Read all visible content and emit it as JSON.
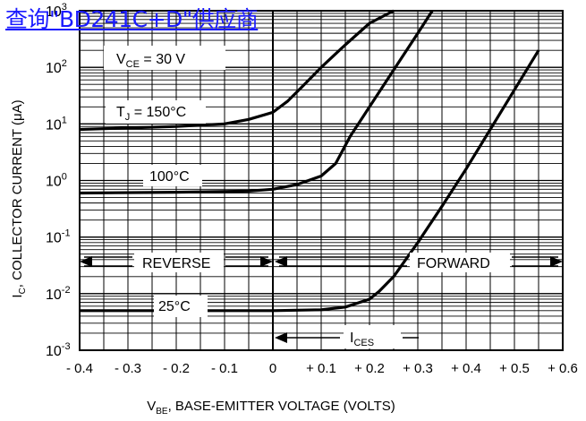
{
  "watermark": {
    "text": "查询\"BD241C+D\"供应商"
  },
  "chart_data": {
    "type": "line",
    "title": "",
    "xlabel": {
      "main": "V",
      "sub": "BE",
      "rest": ", BASE-EMITTER VOLTAGE (VOLTS)"
    },
    "ylabel": {
      "main": "I",
      "sub": "C",
      "rest": ", COLLECTOR CURRENT (μA)"
    },
    "xlim": [
      -0.4,
      0.6
    ],
    "ylim": [
      0.001,
      1000
    ],
    "yscale": "log",
    "grid": true,
    "x_ticks": [
      {
        "v": -0.4,
        "label": "- 0.4"
      },
      {
        "v": -0.3,
        "label": "- 0.3"
      },
      {
        "v": -0.2,
        "label": "- 0.2"
      },
      {
        "v": -0.1,
        "label": "- 0.1"
      },
      {
        "v": 0,
        "label": "0"
      },
      {
        "v": 0.1,
        "label": "+ 0.1"
      },
      {
        "v": 0.2,
        "label": "+ 0.2"
      },
      {
        "v": 0.3,
        "label": "+ 0.3"
      },
      {
        "v": 0.4,
        "label": "+ 0.4"
      },
      {
        "v": 0.5,
        "label": "+ 0.5"
      },
      {
        "v": 0.6,
        "label": "+ 0.6"
      }
    ],
    "y_ticks": [
      {
        "exp": 3,
        "base": "10",
        "sup": "3"
      },
      {
        "exp": 2,
        "base": "10",
        "sup": "2"
      },
      {
        "exp": 1,
        "base": "10",
        "sup": "1"
      },
      {
        "exp": 0,
        "base": "10",
        "sup": "0"
      },
      {
        "exp": -1,
        "base": "10",
        "sup": "-1"
      },
      {
        "exp": -2,
        "base": "10",
        "sup": "-2"
      },
      {
        "exp": -3,
        "base": "10",
        "sup": "-3"
      }
    ],
    "series": [
      {
        "name": "150°C",
        "x": [
          -0.4,
          -0.2,
          -0.1,
          -0.05,
          0,
          0.03,
          0.06,
          0.1,
          0.15,
          0.2,
          0.25
        ],
        "y": [
          8,
          9,
          10,
          12,
          16,
          25,
          45,
          100,
          250,
          600,
          1000
        ]
      },
      {
        "name": "100°C",
        "x": [
          -0.4,
          -0.2,
          -0.05,
          0,
          0.05,
          0.1,
          0.13,
          0.16,
          0.2,
          0.25,
          0.3,
          0.33
        ],
        "y": [
          0.6,
          0.62,
          0.65,
          0.7,
          0.85,
          1.2,
          2,
          6,
          20,
          90,
          400,
          1000
        ]
      },
      {
        "name": "25°C",
        "x": [
          -0.4,
          -0.2,
          0,
          0.1,
          0.15,
          0.2,
          0.22,
          0.25,
          0.3,
          0.35,
          0.4,
          0.45,
          0.5,
          0.55
        ],
        "y": [
          0.005,
          0.005,
          0.005,
          0.0052,
          0.0058,
          0.008,
          0.011,
          0.02,
          0.08,
          0.35,
          1.6,
          8,
          40,
          200
        ]
      }
    ],
    "annotations": {
      "vce": {
        "main": "V",
        "sub": "CE",
        "rest": " = 30 V"
      },
      "tj150": {
        "main": "T",
        "sub": "J",
        "rest": " = 150°C"
      },
      "t100": "100°C",
      "t25": "25°C",
      "ices": {
        "main": "I",
        "sub": "CES"
      },
      "reverse": "REVERSE",
      "forward": "FORWARD"
    }
  }
}
